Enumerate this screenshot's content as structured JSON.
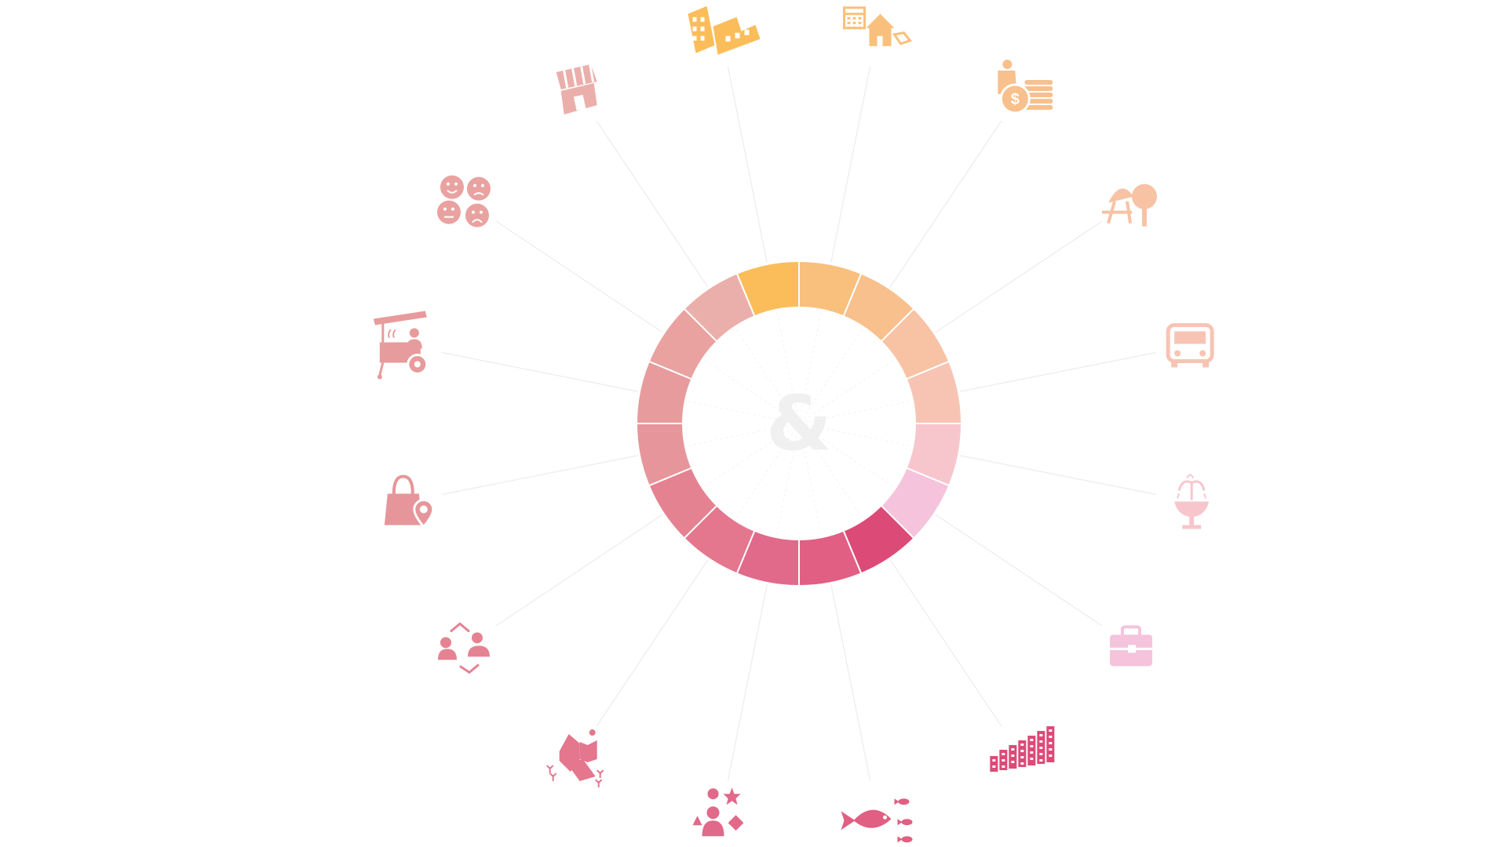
{
  "diagram": {
    "center_label": "&",
    "segments": [
      {
        "name": "building-development",
        "icon": "buildings-icon",
        "color": "#fbbd5a"
      },
      {
        "name": "housing-rental",
        "icon": "house-calendar-icon",
        "color": "#f8c07c"
      },
      {
        "name": "finance",
        "icon": "person-coins-icon",
        "color": "#f8c08c"
      },
      {
        "name": "recreation",
        "icon": "playground-icon",
        "color": "#f7c3a4"
      },
      {
        "name": "transport",
        "icon": "bus-icon",
        "color": "#f7c4b4"
      },
      {
        "name": "public-space",
        "icon": "fountain-icon",
        "color": "#f7c6cc"
      },
      {
        "name": "employment",
        "icon": "briefcase-icon",
        "color": "#f5c3dc"
      },
      {
        "name": "high-density",
        "icon": "city-blocks-icon",
        "color": "#dc4a78"
      },
      {
        "name": "food-ecosystem",
        "icon": "fish-icon",
        "color": "#e05f82"
      },
      {
        "name": "diversity",
        "icon": "person-shapes-icon",
        "color": "#e1698a"
      },
      {
        "name": "urban-nature",
        "icon": "city-trees-icon",
        "color": "#e4768e"
      },
      {
        "name": "exchange",
        "icon": "people-exchange-icon",
        "color": "#e58292"
      },
      {
        "name": "local-shopping",
        "icon": "shopping-bag-pin-icon",
        "color": "#e6969a"
      },
      {
        "name": "street-vending",
        "icon": "vendor-cart-icon",
        "color": "#e79b9c"
      },
      {
        "name": "wellbeing",
        "icon": "emotion-faces-icon",
        "color": "#e9a2a0"
      },
      {
        "name": "retail-storefront",
        "icon": "storefront-icon",
        "color": "#ebafab"
      }
    ]
  }
}
